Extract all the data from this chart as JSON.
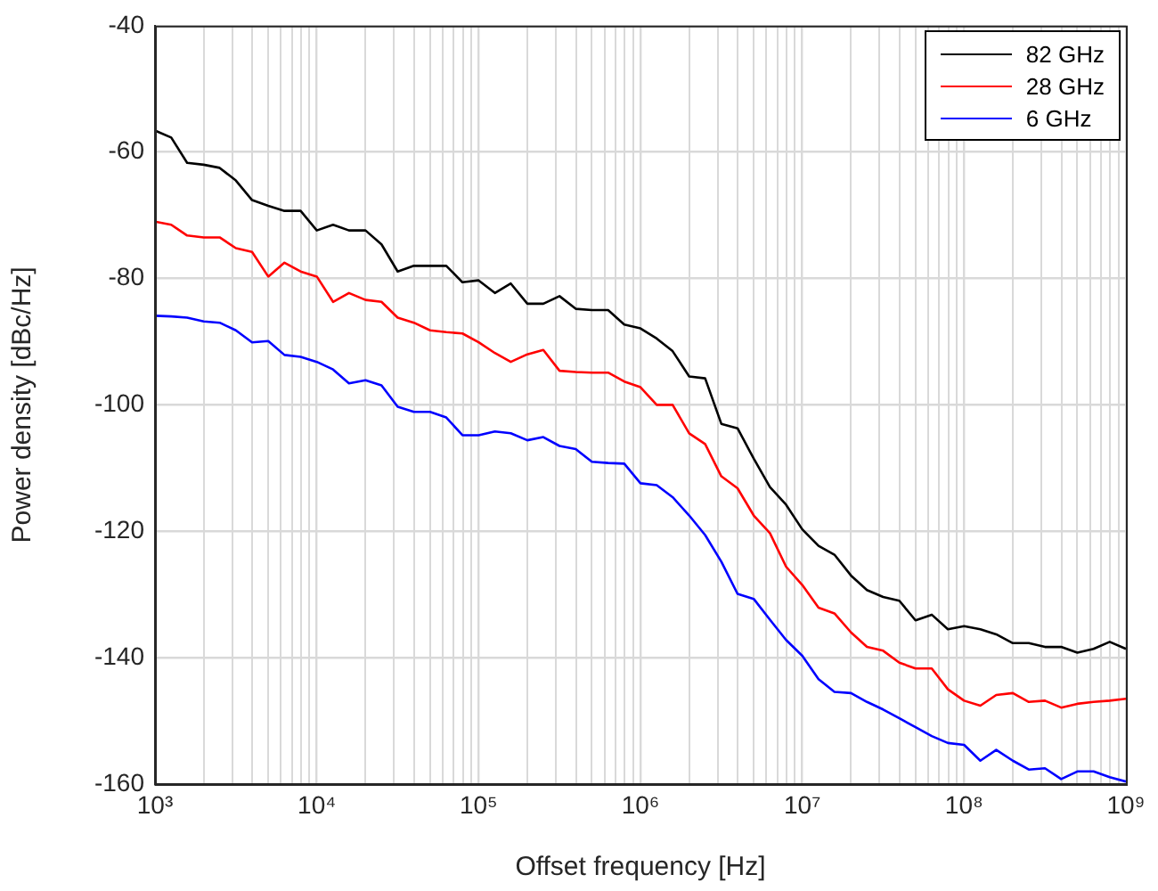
{
  "chart_data": {
    "type": "line",
    "xlabel": "Offset frequency [Hz]",
    "ylabel": "Power density [dBc/Hz]",
    "log": "x",
    "grid": true,
    "legend": "top right",
    "marker": "none",
    "line_style": "solid",
    "xlim": [
      1000,
      1000000000
    ],
    "ylim": [
      -160,
      -40
    ],
    "xticks": [
      {
        "value": 1000,
        "label": "10³"
      },
      {
        "value": 2000,
        "label": null
      },
      {
        "value": 3000,
        "label": null
      },
      {
        "value": 4000,
        "label": null
      },
      {
        "value": 5000,
        "label": null
      },
      {
        "value": 6000,
        "label": null
      },
      {
        "value": 7000,
        "label": null
      },
      {
        "value": 8000,
        "label": null
      },
      {
        "value": 9000,
        "label": null
      },
      {
        "value": 10000,
        "label": "10⁴"
      },
      {
        "value": 20000,
        "label": null
      },
      {
        "value": 30000,
        "label": null
      },
      {
        "value": 40000,
        "label": null
      },
      {
        "value": 50000,
        "label": null
      },
      {
        "value": 60000,
        "label": null
      },
      {
        "value": 70000,
        "label": null
      },
      {
        "value": 80000,
        "label": null
      },
      {
        "value": 90000,
        "label": null
      },
      {
        "value": 100000,
        "label": "10⁵"
      },
      {
        "value": 200000,
        "label": null
      },
      {
        "value": 300000,
        "label": null
      },
      {
        "value": 400000,
        "label": null
      },
      {
        "value": 500000,
        "label": null
      },
      {
        "value": 600000,
        "label": null
      },
      {
        "value": 700000,
        "label": null
      },
      {
        "value": 800000,
        "label": null
      },
      {
        "value": 900000,
        "label": null
      },
      {
        "value": 1000000,
        "label": "10⁶"
      },
      {
        "value": 2000000,
        "label": null
      },
      {
        "value": 3000000,
        "label": null
      },
      {
        "value": 4000000,
        "label": null
      },
      {
        "value": 5000000,
        "label": null
      },
      {
        "value": 6000000,
        "label": null
      },
      {
        "value": 7000000,
        "label": null
      },
      {
        "value": 8000000,
        "label": null
      },
      {
        "value": 9000000,
        "label": null
      },
      {
        "value": 10000000,
        "label": "10⁷"
      },
      {
        "value": 20000000,
        "label": null
      },
      {
        "value": 30000000,
        "label": null
      },
      {
        "value": 40000000,
        "label": null
      },
      {
        "value": 50000000,
        "label": null
      },
      {
        "value": 60000000,
        "label": null
      },
      {
        "value": 70000000,
        "label": null
      },
      {
        "value": 80000000,
        "label": null
      },
      {
        "value": 90000000,
        "label": null
      },
      {
        "value": 100000000,
        "label": "10⁸"
      },
      {
        "value": 200000000,
        "label": null
      },
      {
        "value": 300000000,
        "label": null
      },
      {
        "value": 400000000,
        "label": null
      },
      {
        "value": 500000000,
        "label": null
      },
      {
        "value": 600000000,
        "label": null
      },
      {
        "value": 700000000,
        "label": null
      },
      {
        "value": 800000000,
        "label": null
      },
      {
        "value": 900000000,
        "label": null
      },
      {
        "value": 1000000000,
        "label": "10⁹"
      }
    ],
    "yticks": [
      -160,
      -140,
      -120,
      -100,
      -80,
      -60,
      -40
    ],
    "x": [
      1000,
      1260,
      1580,
      2000,
      2510,
      3160,
      3980,
      5010,
      6310,
      7940,
      10000,
      12600,
      15800,
      20000,
      25100,
      31600,
      39800,
      50100,
      63100,
      79400,
      100000,
      126000,
      158000,
      200000,
      251000,
      316000,
      398000,
      501000,
      631000,
      794000,
      1000000,
      1260000,
      1580000,
      2000000,
      2510000,
      3160000,
      3980000,
      5010000,
      6310000,
      7940000,
      10000000,
      12600000,
      15800000,
      20000000,
      25100000,
      31600000,
      39800000,
      50100000,
      63100000,
      79400000,
      100000000,
      126000000,
      158000000,
      200000000,
      251000000,
      316000000,
      398000000,
      501000000,
      631000000,
      794000000,
      1000000000
    ],
    "series": [
      {
        "name": "82 GHz",
        "color": "#000000",
        "values": [
          -56.6,
          -57.7,
          -61.7,
          -62,
          -62.5,
          -64.5,
          -67.6,
          -68.5,
          -69.3,
          -69.3,
          -72.4,
          -71.5,
          -72.4,
          -72.4,
          -74.6,
          -78.9,
          -78,
          -78,
          -78,
          -80.6,
          -80.3,
          -82.3,
          -80.8,
          -84,
          -84,
          -82.8,
          -84.8,
          -85,
          -85,
          -87.3,
          -87.9,
          -89.5,
          -91.5,
          -95.5,
          -95.8,
          -103,
          -103.7,
          -108.5,
          -113,
          -115.8,
          -119.7,
          -122.3,
          -123.7,
          -127,
          -129.3,
          -130.4,
          -131,
          -134.1,
          -133.2,
          -135.5,
          -135,
          -135.5,
          -136.3,
          -137.7,
          -137.7,
          -138.3,
          -138.3,
          -139.2,
          -138.6,
          -137.5,
          -138.6
        ]
      },
      {
        "name": "28 GHz",
        "color": "#ff0000",
        "values": [
          -71,
          -71.5,
          -73.2,
          -73.5,
          -73.5,
          -75.2,
          -75.8,
          -79.7,
          -77.5,
          -78.9,
          -79.7,
          -83.7,
          -82.3,
          -83.4,
          -83.7,
          -86.2,
          -87,
          -88.2,
          -88.5,
          -88.7,
          -90.1,
          -91.8,
          -93.2,
          -92,
          -91.3,
          -94.6,
          -94.8,
          -94.9,
          -94.9,
          -96.3,
          -97.2,
          -100,
          -100,
          -104.5,
          -106.2,
          -111.3,
          -113.2,
          -117.5,
          -120.3,
          -125.6,
          -128.5,
          -132.1,
          -133,
          -136,
          -138.3,
          -138.9,
          -140.8,
          -141.7,
          -141.7,
          -145,
          -146.8,
          -147.6,
          -145.9,
          -145.6,
          -147,
          -146.8,
          -147.9,
          -147.3,
          -147,
          -146.8,
          -146.5
        ]
      },
      {
        "name": "6 GHz",
        "color": "#0000ff",
        "values": [
          -85.9,
          -86,
          -86.2,
          -86.8,
          -87,
          -88.2,
          -90.1,
          -89.9,
          -92.1,
          -92.4,
          -93.2,
          -94.4,
          -96.6,
          -96.1,
          -96.9,
          -100.3,
          -101.1,
          -101.1,
          -102,
          -104.8,
          -104.8,
          -104.2,
          -104.5,
          -105.6,
          -105.1,
          -106.5,
          -107,
          -109,
          -109.2,
          -109.3,
          -112.4,
          -112.7,
          -114.6,
          -117.5,
          -120.6,
          -124.8,
          -129.9,
          -130.7,
          -134,
          -137.2,
          -139.7,
          -143.4,
          -145.4,
          -145.6,
          -147,
          -148.2,
          -149.6,
          -151,
          -152.4,
          -153.5,
          -153.8,
          -156.3,
          -154.6,
          -156.3,
          -157.7,
          -157.5,
          -159.2,
          -158,
          -158,
          -158.9,
          -159.6
        ]
      }
    ]
  }
}
